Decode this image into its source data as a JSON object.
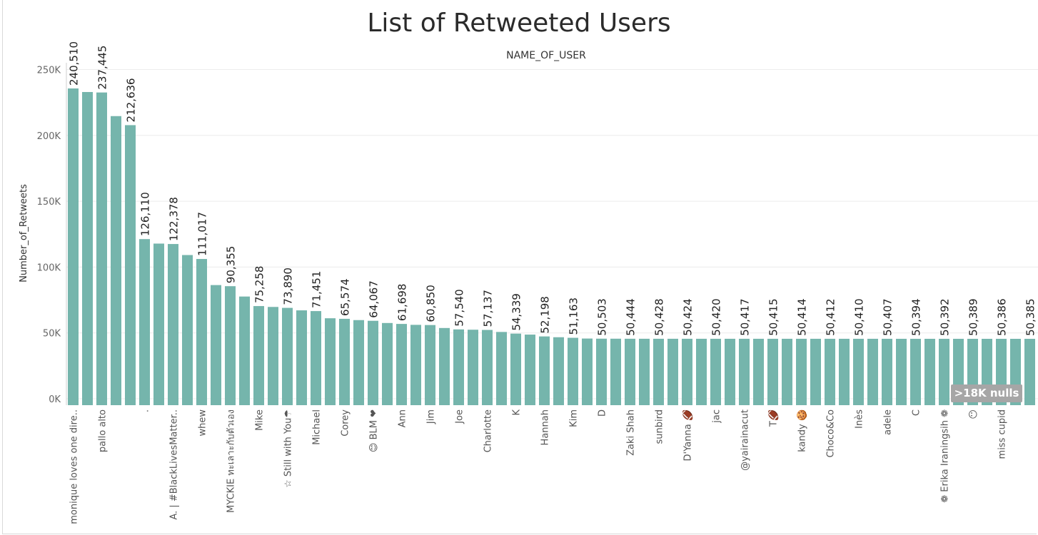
{
  "header": {
    "title": "List of Retweeted Users",
    "column_header": "NAME_OF_USER"
  },
  "null_indicator": ">18K nulls",
  "colors": {
    "bar": "#75B5AC",
    "grid": "#ececec",
    "axis": "#cfcfcf"
  },
  "chart_data": {
    "type": "bar",
    "title": "List of Retweeted Users",
    "xlabel": "NAME_OF_USER",
    "ylabel": "Number_of_Retweets",
    "ylim": [
      0,
      260000
    ],
    "yticks": [
      0,
      50000,
      100000,
      150000,
      200000,
      250000
    ],
    "ytick_labels": [
      "0K",
      "50K",
      "100K",
      "150K",
      "200K",
      "250K"
    ],
    "grid": true,
    "categories": [
      "monique loves one dire..",
      "",
      "pallo alto",
      "",
      "",
      ".",
      "",
      "A. | #BlackLivesMatter..",
      "",
      "whew",
      "",
      "MYCKIE ทะเลาะกับตัวเอง",
      "",
      "Mike",
      "",
      "☆ Still with You☂",
      "",
      "Michael",
      "",
      "Corey",
      "",
      "😊 BLM ❤",
      "",
      "Ann",
      "",
      "Jim",
      "",
      "Joe",
      "",
      "Charlotte",
      "",
      "K",
      "",
      "Hannah",
      "",
      "Kim",
      "",
      "D",
      "",
      "Zaki Shah",
      "",
      "sunbird",
      "",
      "D'Yanna 🏈",
      "",
      "jac",
      "",
      "@yairainacut",
      "",
      "T🏈",
      "",
      "kandy 🍪",
      "",
      "Choco&Co",
      "",
      "Inès",
      "",
      "adele",
      "",
      "C",
      "",
      "❁ Erika Iraningsih ❁",
      "",
      "😶",
      "",
      "miss cupid",
      "",
      ""
    ],
    "values": [
      240510,
      237800,
      237445,
      219500,
      212636,
      126110,
      122700,
      122378,
      114000,
      111017,
      91200,
      90355,
      82500,
      75258,
      74600,
      73890,
      72000,
      71451,
      66000,
      65574,
      64600,
      64067,
      62400,
      61698,
      61000,
      60850,
      58600,
      57540,
      57300,
      57137,
      55600,
      54339,
      53600,
      52198,
      51600,
      51163,
      50600,
      50503,
      50480,
      50444,
      50435,
      50428,
      50426,
      50424,
      50422,
      50420,
      50418,
      50417,
      50416,
      50415,
      50414,
      50414,
      50413,
      50412,
      50411,
      50410,
      50408,
      50407,
      50400,
      50394,
      50393,
      50392,
      50390,
      50389,
      50387,
      50386,
      50385,
      50385
    ],
    "data_labels": [
      "240,510",
      "",
      "237,445",
      "",
      "212,636",
      "126,110",
      "",
      "122,378",
      "",
      "111,017",
      "",
      "90,355",
      "",
      "75,258",
      "",
      "73,890",
      "",
      "71,451",
      "",
      "65,574",
      "",
      "64,067",
      "",
      "61,698",
      "",
      "60,850",
      "",
      "57,540",
      "",
      "57,137",
      "",
      "54,339",
      "",
      "52,198",
      "",
      "51,163",
      "",
      "50,503",
      "",
      "50,444",
      "",
      "50,428",
      "",
      "50,424",
      "",
      "50,420",
      "",
      "50,417",
      "",
      "50,415",
      "",
      "50,414",
      "",
      "50,412",
      "",
      "50,410",
      "",
      "50,407",
      "",
      "50,394",
      "",
      "50,392",
      "",
      "50,389",
      "",
      "50,386",
      "",
      "50,385"
    ]
  }
}
